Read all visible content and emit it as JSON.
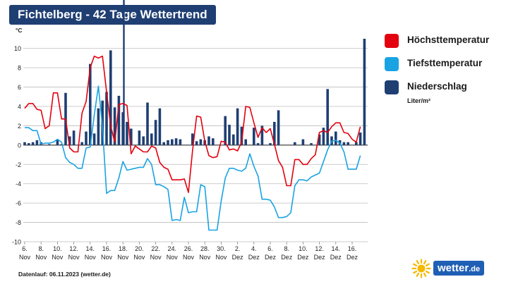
{
  "header": {
    "title": "Fichtelberg - 42 Tage Wettertrend"
  },
  "legend": {
    "max": {
      "label": "Höchsttemperatur",
      "color": "#e3000f"
    },
    "min": {
      "label": "Tiefsttemperatur",
      "color": "#19a3e3"
    },
    "precip": {
      "label": "Niederschlag",
      "color": "#1f3f73",
      "unit": "Liter/m²"
    }
  },
  "footer": {
    "text": "Datenlauf: 06.11.2023 (wetter.de)"
  },
  "logo": {
    "text": "wetter",
    "suffix": ".de",
    "sun_color": "#f5b800"
  },
  "chart_data": {
    "type": "line",
    "y_unit": "°C",
    "ylim": [
      -10,
      11
    ],
    "yticks": [
      10,
      8,
      6,
      4,
      2,
      0,
      -2,
      -4,
      -6,
      -8,
      -10
    ],
    "grid": true,
    "x_start_label": "6. Nov",
    "x_end_label": "17. Dez",
    "xticks": [
      {
        "day": 0,
        "num": "6.",
        "month": "Nov"
      },
      {
        "day": 2,
        "num": "8.",
        "month": "Nov"
      },
      {
        "day": 4,
        "num": "10.",
        "month": "Nov"
      },
      {
        "day": 6,
        "num": "12.",
        "month": "Nov"
      },
      {
        "day": 8,
        "num": "14.",
        "month": "Nov"
      },
      {
        "day": 10,
        "num": "16.",
        "month": "Nov"
      },
      {
        "day": 12,
        "num": "18.",
        "month": "Nov"
      },
      {
        "day": 14,
        "num": "20.",
        "month": "Nov"
      },
      {
        "day": 16,
        "num": "22.",
        "month": "Nov"
      },
      {
        "day": 18,
        "num": "24.",
        "month": "Nov"
      },
      {
        "day": 20,
        "num": "26.",
        "month": "Nov"
      },
      {
        "day": 22,
        "num": "28.",
        "month": "Nov"
      },
      {
        "day": 24,
        "num": "30.",
        "month": "Nov"
      },
      {
        "day": 26,
        "num": "2.",
        "month": "Dez"
      },
      {
        "day": 28,
        "num": "4.",
        "month": "Dez"
      },
      {
        "day": 30,
        "num": "6.",
        "month": "Dez"
      },
      {
        "day": 32,
        "num": "8.",
        "month": "Dez"
      },
      {
        "day": 34,
        "num": "10.",
        "month": "Dez"
      },
      {
        "day": 36,
        "num": "12.",
        "month": "Dez"
      },
      {
        "day": 38,
        "num": "14.",
        "month": "Dez"
      },
      {
        "day": 40,
        "num": "16.",
        "month": "Dez"
      }
    ],
    "series": [
      {
        "name": "Höchsttemperatur",
        "color": "#e3000f",
        "points": [
          [
            0,
            3.8
          ],
          [
            0.5,
            4.3
          ],
          [
            1,
            4.3
          ],
          [
            1.5,
            3.7
          ],
          [
            2,
            3.6
          ],
          [
            2.5,
            1.7
          ],
          [
            3,
            2.0
          ],
          [
            3.5,
            5.4
          ],
          [
            4,
            5.4
          ],
          [
            4.5,
            2.7
          ],
          [
            5,
            2.7
          ],
          [
            5.5,
            -0.3
          ],
          [
            6,
            -0.7
          ],
          [
            6.5,
            -0.7
          ],
          [
            7,
            3.3
          ],
          [
            7.5,
            4.5
          ],
          [
            8,
            8.0
          ],
          [
            8.5,
            9.2
          ],
          [
            9,
            9.0
          ],
          [
            9.5,
            9.2
          ],
          [
            10,
            5.5
          ],
          [
            10.5,
            2.0
          ],
          [
            11,
            0.3
          ],
          [
            11.5,
            4.2
          ],
          [
            12,
            4.3
          ],
          [
            12.5,
            4.1
          ],
          [
            13,
            -0.9
          ],
          [
            13.5,
            -0.1
          ],
          [
            14,
            -0.4
          ],
          [
            14.5,
            -0.7
          ],
          [
            15,
            -0.7
          ],
          [
            15.5,
            -0.1
          ],
          [
            16,
            -0.3
          ],
          [
            16.5,
            -1.8
          ],
          [
            17,
            -2.3
          ],
          [
            17.5,
            -2.5
          ],
          [
            18,
            -3.6
          ],
          [
            18.5,
            -3.6
          ],
          [
            19,
            -3.6
          ],
          [
            19.5,
            -3.5
          ],
          [
            20,
            -4.9
          ],
          [
            20.5,
            -0.6
          ],
          [
            21,
            3.0
          ],
          [
            21.5,
            2.9
          ],
          [
            22,
            0.4
          ],
          [
            22.5,
            -1.1
          ],
          [
            23,
            -1.3
          ],
          [
            23.5,
            -1.2
          ],
          [
            24,
            0.4
          ],
          [
            24.5,
            0.3
          ],
          [
            25,
            -0.5
          ],
          [
            25.5,
            -0.4
          ],
          [
            26,
            -0.6
          ],
          [
            26.5,
            0.3
          ],
          [
            27,
            4.0
          ],
          [
            27.5,
            3.9
          ],
          [
            28,
            2.3
          ],
          [
            28.5,
            0.8
          ],
          [
            29,
            1.8
          ],
          [
            29.5,
            1.3
          ],
          [
            30,
            1.7
          ],
          [
            30.5,
            0.1
          ],
          [
            31,
            -1.6
          ],
          [
            31.5,
            -2.3
          ],
          [
            32,
            -4.2
          ],
          [
            32.5,
            -4.2
          ],
          [
            33,
            -1.5
          ],
          [
            33.5,
            -1.5
          ],
          [
            34,
            -2.0
          ],
          [
            34.5,
            -2.0
          ],
          [
            35,
            -1.4
          ],
          [
            35.5,
            -1.0
          ],
          [
            36,
            1.3
          ],
          [
            36.5,
            1.5
          ],
          [
            37,
            1.3
          ],
          [
            37.5,
            1.9
          ],
          [
            38,
            2.3
          ],
          [
            38.5,
            2.3
          ],
          [
            39,
            1.3
          ],
          [
            39.5,
            1.2
          ],
          [
            40,
            0.6
          ],
          [
            40.5,
            0.3
          ],
          [
            41,
            1.9
          ]
        ]
      },
      {
        "name": "Tiefsttemperatur",
        "color": "#19a3e3",
        "points": [
          [
            0,
            1.8
          ],
          [
            0.5,
            1.8
          ],
          [
            1,
            1.5
          ],
          [
            1.5,
            1.5
          ],
          [
            2,
            0.1
          ],
          [
            2.5,
            0.2
          ],
          [
            3,
            0.2
          ],
          [
            3.5,
            0.3
          ],
          [
            4,
            0.6
          ],
          [
            4.5,
            0.3
          ],
          [
            5,
            -1.3
          ],
          [
            5.5,
            -1.8
          ],
          [
            6,
            -2.0
          ],
          [
            6.5,
            -2.4
          ],
          [
            7,
            -2.4
          ],
          [
            7.5,
            -0.3
          ],
          [
            8,
            -0.2
          ],
          [
            8.5,
            3.1
          ],
          [
            9,
            6.1
          ],
          [
            9.5,
            1.9
          ],
          [
            10,
            -5.0
          ],
          [
            10.5,
            -4.7
          ],
          [
            11,
            -4.7
          ],
          [
            11.5,
            -3.4
          ],
          [
            12,
            -1.7
          ],
          [
            12.5,
            -2.6
          ],
          [
            13,
            -2.5
          ],
          [
            13.5,
            -2.4
          ],
          [
            14,
            -2.3
          ],
          [
            14.5,
            -2.3
          ],
          [
            15,
            -1.4
          ],
          [
            15.5,
            -2.0
          ],
          [
            16,
            -4.1
          ],
          [
            16.5,
            -4.1
          ],
          [
            17,
            -4.3
          ],
          [
            17.5,
            -4.6
          ],
          [
            18,
            -7.8
          ],
          [
            18.5,
            -7.7
          ],
          [
            19,
            -7.8
          ],
          [
            19.5,
            -5.4
          ],
          [
            20,
            -7.0
          ],
          [
            20.5,
            -6.9
          ],
          [
            21,
            -6.9
          ],
          [
            21.5,
            -4.1
          ],
          [
            22,
            -4.3
          ],
          [
            22.5,
            -8.8
          ],
          [
            23,
            -8.8
          ],
          [
            23.5,
            -8.8
          ],
          [
            24,
            -5.8
          ],
          [
            24.5,
            -3.4
          ],
          [
            25,
            -2.4
          ],
          [
            25.5,
            -2.4
          ],
          [
            26,
            -2.6
          ],
          [
            26.5,
            -2.7
          ],
          [
            27,
            -2.4
          ],
          [
            27.5,
            -0.9
          ],
          [
            28,
            -2.2
          ],
          [
            28.5,
            -3.2
          ],
          [
            29,
            -5.6
          ],
          [
            29.5,
            -5.6
          ],
          [
            30,
            -5.7
          ],
          [
            30.5,
            -6.4
          ],
          [
            31,
            -7.5
          ],
          [
            31.5,
            -7.5
          ],
          [
            32,
            -7.4
          ],
          [
            32.5,
            -7.0
          ],
          [
            33,
            -4.2
          ],
          [
            33.5,
            -3.6
          ],
          [
            34,
            -3.6
          ],
          [
            34.5,
            -3.7
          ],
          [
            35,
            -3.3
          ],
          [
            35.5,
            -3.1
          ],
          [
            36,
            -2.9
          ],
          [
            36.5,
            -1.7
          ],
          [
            37,
            -0.5
          ],
          [
            37.5,
            0.4
          ],
          [
            38,
            0.5
          ],
          [
            38.5,
            0.2
          ],
          [
            39,
            -0.7
          ],
          [
            39.5,
            -2.5
          ],
          [
            40,
            -2.5
          ],
          [
            40.5,
            -2.5
          ],
          [
            41,
            -1.1
          ]
        ]
      }
    ],
    "precip": {
      "name": "Niederschlag",
      "unit": "Liter/m²",
      "color": "#1f3f73",
      "bars": [
        [
          0,
          0.3
        ],
        [
          0.5,
          0.2
        ],
        [
          1,
          0.3
        ],
        [
          1.5,
          0.5
        ],
        [
          2,
          0.3
        ],
        [
          3,
          0.1
        ],
        [
          4,
          0.6
        ],
        [
          4.5,
          0.1
        ],
        [
          5,
          5.4
        ],
        [
          5.5,
          0.9
        ],
        [
          6,
          1.5
        ],
        [
          7,
          0.3
        ],
        [
          7.5,
          1.4
        ],
        [
          8,
          8.4
        ],
        [
          8.5,
          1.2
        ],
        [
          9,
          3.8
        ],
        [
          9.5,
          4.6
        ],
        [
          10,
          5.5
        ],
        [
          10.5,
          9.8
        ],
        [
          11,
          3.9
        ],
        [
          11.5,
          5.1
        ],
        [
          12,
          3.4
        ],
        [
          12.5,
          2.4
        ],
        [
          13,
          1.7
        ],
        [
          14,
          1.5
        ],
        [
          14.5,
          0.9
        ],
        [
          15,
          4.4
        ],
        [
          15.5,
          1.2
        ],
        [
          16,
          2.6
        ],
        [
          16.5,
          3.8
        ],
        [
          17,
          0.3
        ],
        [
          17.5,
          0.5
        ],
        [
          18,
          0.6
        ],
        [
          18.5,
          0.7
        ],
        [
          19,
          0.6
        ],
        [
          20.5,
          1.2
        ],
        [
          21,
          0.4
        ],
        [
          21.5,
          0.6
        ],
        [
          22,
          0.5
        ],
        [
          22.5,
          0.9
        ],
        [
          23,
          0.7
        ],
        [
          24.5,
          3.0
        ],
        [
          25,
          2.1
        ],
        [
          25.5,
          1.1
        ],
        [
          26,
          3.8
        ],
        [
          26.5,
          1.9
        ],
        [
          27,
          0.6
        ],
        [
          28,
          1.8
        ],
        [
          28.5,
          0.2
        ],
        [
          29,
          2.0
        ],
        [
          30,
          0.2
        ],
        [
          30.5,
          2.4
        ],
        [
          31,
          3.6
        ],
        [
          33,
          0.3
        ],
        [
          34,
          0.6
        ],
        [
          35,
          0.2
        ],
        [
          36,
          1.1
        ],
        [
          36.5,
          1.8
        ],
        [
          37,
          5.8
        ],
        [
          37.5,
          0.9
        ],
        [
          38,
          1.4
        ],
        [
          38.5,
          0.5
        ],
        [
          39,
          0.3
        ],
        [
          39.5,
          0.3
        ],
        [
          40.5,
          0.3
        ],
        [
          41,
          1.3
        ],
        [
          41.5,
          11.2
        ]
      ]
    }
  }
}
